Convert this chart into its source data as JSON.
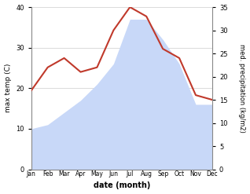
{
  "months": [
    "Jan",
    "Feb",
    "Mar",
    "Apr",
    "May",
    "Jun",
    "Jul",
    "Aug",
    "Sep",
    "Oct",
    "Nov",
    "Dec"
  ],
  "max_temp": [
    10,
    11,
    14,
    17,
    21,
    26,
    37,
    37,
    32,
    26,
    16,
    16
  ],
  "med_precip": [
    17,
    22,
    24,
    21,
    22,
    30,
    35,
    33,
    26,
    24,
    16,
    15
  ],
  "temp_line_color": "#c0392b",
  "temp_fill_color": "#c8d8f8",
  "left_ylim": [
    0,
    40
  ],
  "right_ylim": [
    0,
    35
  ],
  "left_yticks": [
    0,
    10,
    20,
    30,
    40
  ],
  "right_yticks": [
    0,
    5,
    10,
    15,
    20,
    25,
    30,
    35
  ],
  "xlabel": "date (month)",
  "ylabel_left": "max temp (C)",
  "ylabel_right": "med. precipitation (kg/m2)",
  "bg_color": "#ffffff"
}
